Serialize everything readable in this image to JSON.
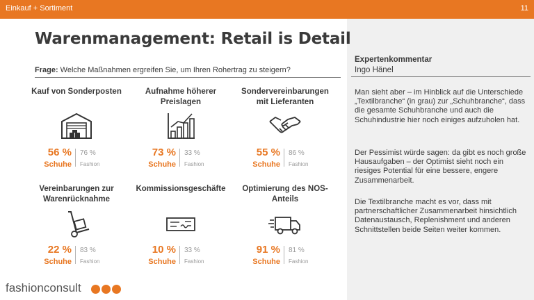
{
  "header": {
    "section": "Einkauf + Sortiment",
    "page_number": "11",
    "accent_color": "#e87722"
  },
  "title": "Warenmanagement: Retail is Detail",
  "question": {
    "label": "Frage:",
    "text": " Welche Maßnahmen ergreifen Sie, um Ihren Rohertrag zu steigern?"
  },
  "measures": [
    {
      "heading": "Kauf von Sonderposten",
      "icon": "warehouse-icon",
      "shoe_pct": "56 %",
      "shoe_label": "Schuhe",
      "fashion_pct": "76 %",
      "fashion_label": "Fashion"
    },
    {
      "heading": "Aufnahme höherer Preislagen",
      "icon": "bar-chart-icon",
      "shoe_pct": "73 %",
      "shoe_label": "Schuhe",
      "fashion_pct": "33 %",
      "fashion_label": "Fashion"
    },
    {
      "heading": "Sondervereinbarungen mit Lieferanten",
      "icon": "handshake-icon",
      "shoe_pct": "55 %",
      "shoe_label": "Schuhe",
      "fashion_pct": "86 %",
      "fashion_label": "Fashion"
    },
    {
      "heading": "Vereinbarungen zur Warenrücknahme",
      "icon": "hand-truck-icon",
      "shoe_pct": "22 %",
      "shoe_label": "Schuhe",
      "fashion_pct": "83 %",
      "fashion_label": "Fashion"
    },
    {
      "heading": "Kommissionsgeschäfte",
      "icon": "cheque-icon",
      "shoe_pct": "10 %",
      "shoe_label": "Schuhe",
      "fashion_pct": "33 %",
      "fashion_label": "Fashion"
    },
    {
      "heading": "Optimierung des NOS-Anteils",
      "icon": "delivery-truck-icon",
      "shoe_pct": "91 %",
      "shoe_label": "Schuhe",
      "fashion_pct": "81 %",
      "fashion_label": "Fashion"
    }
  ],
  "expert": {
    "title": "Expertenkommentar",
    "name": "Ingo Hänel",
    "paragraphs": [
      "Man sieht aber – im Hinblick auf die Unterschiede „Textilbranche“ (in grau) zur „Schuhbranche“, dass die gesamte Schuhbranche und auch die Schuhindustrie hier noch einiges aufzuholen hat.",
      "Der Pessimist würde sagen: da gibt es noch große Hausaufgaben – der Optimist sieht noch ein riesiges Potential für eine bessere, engere Zusammenarbeit.",
      "Die Textilbranche macht es vor, dass mit partnerschaftlicher Zusammenarbeit hinsichtlich Datenaustausch, Replenishment und anderen Schnittstellen beide Seiten weiter kommen."
    ]
  },
  "footer": {
    "logo_text": "fashionconsult"
  }
}
